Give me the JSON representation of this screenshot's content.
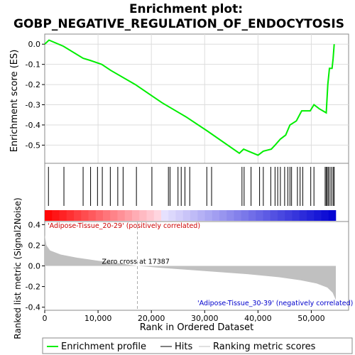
{
  "chart_data": {
    "type": "line",
    "title_line1": "Enrichment plot:",
    "title_line2": "GOBP_NEGATIVE_REGULATION_OF_ENDOCYTOSIS",
    "es_panel": {
      "ylabel": "Enrichment score (ES)",
      "ylim": [
        -0.59,
        0.05
      ],
      "yticks": [
        0.0,
        -0.1,
        -0.2,
        -0.3,
        -0.4,
        -0.5
      ],
      "ytick_labels": [
        "0.0",
        "-0.1",
        "-0.2",
        "-0.3",
        "-0.4",
        "-0.5"
      ],
      "color": "#00ee00",
      "x": [
        0,
        800,
        3500,
        7200,
        8500,
        10700,
        12400,
        17000,
        22000,
        26500,
        30500,
        36500,
        37300,
        38200,
        40000,
        41000,
        42500,
        43200,
        44200,
        45200,
        46000,
        47200,
        48200,
        49800,
        50500,
        51500,
        52800,
        53100,
        53400,
        53900,
        54100,
        54300
      ],
      "y": [
        0.0,
        0.02,
        -0.01,
        -0.07,
        -0.08,
        -0.1,
        -0.13,
        -0.2,
        -0.29,
        -0.36,
        -0.43,
        -0.54,
        -0.52,
        -0.53,
        -0.55,
        -0.53,
        -0.52,
        -0.5,
        -0.47,
        -0.45,
        -0.4,
        -0.38,
        -0.33,
        -0.33,
        -0.3,
        -0.32,
        -0.34,
        -0.2,
        -0.12,
        -0.12,
        -0.07,
        0.0
      ]
    },
    "hits_panel": {
      "hit_positions": [
        700,
        3600,
        7200,
        8600,
        9900,
        10800,
        12300,
        13700,
        14700,
        17200,
        20100,
        23200,
        23500,
        25000,
        25600,
        26300,
        27200,
        30400,
        31300,
        37000,
        37400,
        38700,
        40300,
        41000,
        42400,
        43200,
        43700,
        44200,
        45000,
        45600,
        46000,
        46300,
        47400,
        47900,
        48400,
        49900,
        50500,
        52600,
        52800,
        53000,
        53200,
        53500,
        53800,
        54100,
        54300
      ]
    },
    "metric_panel": {
      "ylabel": "Ranked list metric (Signal2Noise)",
      "ylim": [
        -0.43,
        0.43
      ],
      "yticks": [
        0.4,
        0.2,
        0.0,
        -0.2,
        -0.4
      ],
      "ytick_labels": [
        "0.4",
        "0.2",
        "0.0",
        "-0.2",
        "-0.4"
      ],
      "metric_points_x": [
        0,
        300,
        1000,
        3000,
        6000,
        10000,
        14000,
        17387,
        22000,
        30000,
        38000,
        44000,
        48000,
        51000,
        53000,
        54000,
        54600
      ],
      "metric_points_y": [
        0.3,
        0.2,
        0.15,
        0.11,
        0.08,
        0.05,
        0.025,
        0.0,
        -0.02,
        -0.05,
        -0.08,
        -0.11,
        -0.14,
        -0.17,
        -0.21,
        -0.26,
        -0.33
      ],
      "zero_cross_label": "Zero cross at 17387",
      "zero_cross": 17387,
      "pos_label": "'Adipose-Tissue_20-29' (positively correlated)",
      "neg_label": "'Adipose-Tissue_30-39' (negatively correlated)"
    },
    "xlabel": "Rank in Ordered Dataset",
    "xlim": [
      0,
      57000
    ],
    "xticks": [
      0,
      10000,
      20000,
      30000,
      40000,
      50000
    ],
    "xtick_labels": [
      "0",
      "10,000",
      "20,000",
      "30,000",
      "40,000",
      "50,000"
    ],
    "dataset_size": 54600,
    "legend": {
      "entries": [
        "Enrichment profile",
        "Hits",
        "Ranking metric scores"
      ],
      "colors": [
        "#00ee00",
        "#000000",
        "#c0c0c0"
      ]
    }
  }
}
